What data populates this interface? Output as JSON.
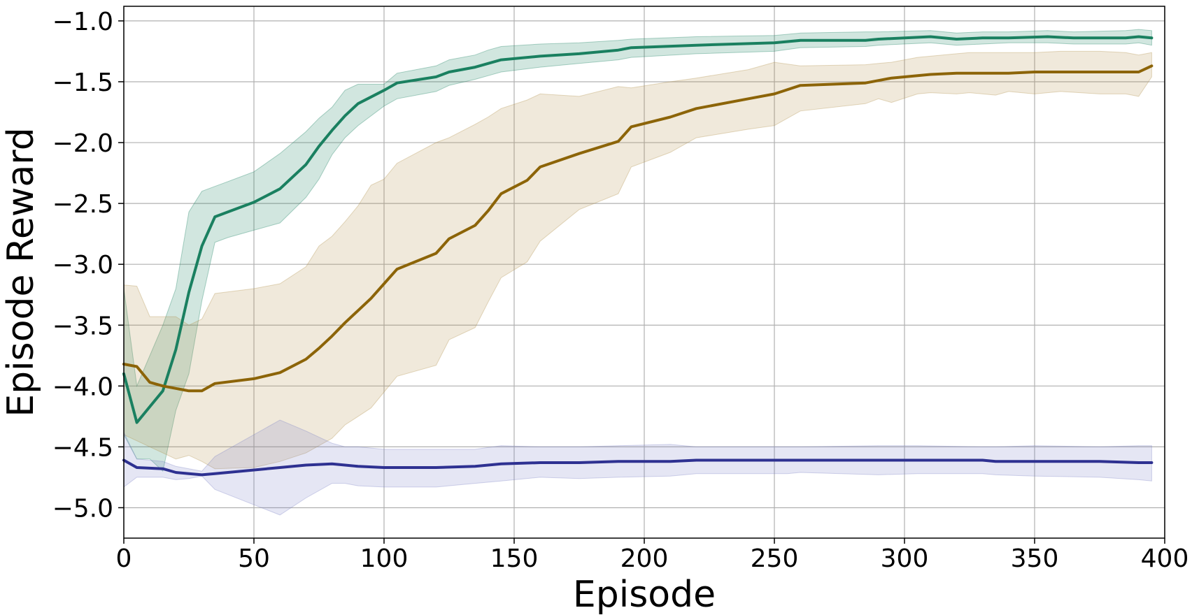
{
  "chart_data": {
    "type": "line",
    "title": "",
    "xlabel": "Episode",
    "ylabel": "Episode Reward",
    "xlim": [
      0,
      400
    ],
    "ylim": [
      -5.25,
      -0.88
    ],
    "grid": true,
    "legend": "none",
    "xticks": [
      0,
      50,
      100,
      150,
      200,
      250,
      300,
      350,
      400
    ],
    "xtick_labels": [
      "0",
      "50",
      "100",
      "150",
      "200",
      "250",
      "300",
      "350",
      "400"
    ],
    "yticks": [
      -1.0,
      -1.5,
      -2.0,
      -2.5,
      -3.0,
      -3.5,
      -4.0,
      -4.5,
      -5.0
    ],
    "ytick_labels": [
      "−1.0",
      "−1.5",
      "−2.0",
      "−2.5",
      "−3.0",
      "−3.5",
      "−4.0",
      "−4.5",
      "−5.0"
    ],
    "series": [
      {
        "color": "#1a8060",
        "band_color": "#1a8060",
        "points": [
          [
            0,
            -3.9,
            -4.4,
            -3.2
          ],
          [
            5,
            -4.3,
            -4.6,
            -4.0
          ],
          [
            10,
            -4.17,
            -4.6,
            -3.75
          ],
          [
            15,
            -4.04,
            -4.7,
            -3.5
          ],
          [
            20,
            -3.7,
            -4.2,
            -3.2
          ],
          [
            25,
            -3.23,
            -3.9,
            -2.57
          ],
          [
            30,
            -2.85,
            -3.3,
            -2.4
          ],
          [
            35,
            -2.61,
            -2.82,
            -2.36
          ],
          [
            40,
            -2.57,
            -2.78,
            -2.32
          ],
          [
            50,
            -2.49,
            -2.72,
            -2.24
          ],
          [
            60,
            -2.38,
            -2.66,
            -2.09
          ],
          [
            70,
            -2.18,
            -2.45,
            -1.91
          ],
          [
            75,
            -2.03,
            -2.3,
            -1.8
          ],
          [
            80,
            -1.9,
            -2.1,
            -1.71
          ],
          [
            85,
            -1.78,
            -1.96,
            -1.57
          ],
          [
            90,
            -1.68,
            -1.86,
            -1.52
          ],
          [
            100,
            -1.57,
            -1.7,
            -1.52
          ],
          [
            105,
            -1.51,
            -1.64,
            -1.43
          ],
          [
            120,
            -1.46,
            -1.58,
            -1.37
          ],
          [
            125,
            -1.42,
            -1.53,
            -1.32
          ],
          [
            135,
            -1.38,
            -1.48,
            -1.28
          ],
          [
            140,
            -1.35,
            -1.45,
            -1.24
          ],
          [
            145,
            -1.32,
            -1.42,
            -1.21
          ],
          [
            160,
            -1.29,
            -1.38,
            -1.19
          ],
          [
            175,
            -1.27,
            -1.35,
            -1.18
          ],
          [
            190,
            -1.24,
            -1.32,
            -1.16
          ],
          [
            195,
            -1.22,
            -1.3,
            -1.15
          ],
          [
            220,
            -1.2,
            -1.27,
            -1.13
          ],
          [
            250,
            -1.18,
            -1.25,
            -1.12
          ],
          [
            260,
            -1.16,
            -1.22,
            -1.1
          ],
          [
            285,
            -1.16,
            -1.21,
            -1.09
          ],
          [
            290,
            -1.15,
            -1.2,
            -1.09
          ],
          [
            310,
            -1.13,
            -1.18,
            -1.08
          ],
          [
            320,
            -1.15,
            -1.2,
            -1.1
          ],
          [
            330,
            -1.14,
            -1.19,
            -1.09
          ],
          [
            340,
            -1.14,
            -1.18,
            -1.09
          ],
          [
            355,
            -1.13,
            -1.18,
            -1.08
          ],
          [
            365,
            -1.14,
            -1.19,
            -1.09
          ],
          [
            385,
            -1.14,
            -1.19,
            -1.08
          ],
          [
            390,
            -1.13,
            -1.18,
            -1.07
          ],
          [
            395,
            -1.14,
            -1.2,
            -1.08
          ]
        ]
      },
      {
        "color": "#8c6408",
        "band_color": "#b3914d",
        "points": [
          [
            0,
            -3.82,
            -4.4,
            -3.17
          ],
          [
            5,
            -3.84,
            -4.45,
            -3.18
          ],
          [
            10,
            -3.97,
            -4.5,
            -3.43
          ],
          [
            15,
            -4.0,
            -4.55,
            -3.43
          ],
          [
            20,
            -4.02,
            -4.6,
            -3.43
          ],
          [
            25,
            -4.04,
            -4.57,
            -3.5
          ],
          [
            30,
            -4.04,
            -4.62,
            -3.45
          ],
          [
            35,
            -3.98,
            -4.68,
            -3.24
          ],
          [
            50,
            -3.94,
            -4.67,
            -3.2
          ],
          [
            60,
            -3.89,
            -4.62,
            -3.16
          ],
          [
            70,
            -3.78,
            -4.55,
            -3.02
          ],
          [
            75,
            -3.69,
            -4.49,
            -2.85
          ],
          [
            80,
            -3.59,
            -4.43,
            -2.77
          ],
          [
            85,
            -3.48,
            -4.32,
            -2.65
          ],
          [
            90,
            -3.38,
            -4.25,
            -2.52
          ],
          [
            95,
            -3.28,
            -4.18,
            -2.35
          ],
          [
            100,
            -3.16,
            -4.05,
            -2.3
          ],
          [
            105,
            -3.04,
            -3.92,
            -2.17
          ],
          [
            120,
            -2.91,
            -3.83,
            -2.0
          ],
          [
            125,
            -2.79,
            -3.62,
            -1.96
          ],
          [
            135,
            -2.68,
            -3.52,
            -1.85
          ],
          [
            140,
            -2.56,
            -3.31,
            -1.79
          ],
          [
            145,
            -2.42,
            -3.11,
            -1.72
          ],
          [
            155,
            -2.31,
            -2.98,
            -1.65
          ],
          [
            160,
            -2.2,
            -2.81,
            -1.6
          ],
          [
            175,
            -2.09,
            -2.55,
            -1.62
          ],
          [
            190,
            -1.99,
            -2.42,
            -1.54
          ],
          [
            195,
            -1.87,
            -2.2,
            -1.55
          ],
          [
            210,
            -1.79,
            -2.08,
            -1.5
          ],
          [
            220,
            -1.72,
            -1.96,
            -1.47
          ],
          [
            240,
            -1.64,
            -1.89,
            -1.4
          ],
          [
            250,
            -1.6,
            -1.86,
            -1.34
          ],
          [
            260,
            -1.53,
            -1.74,
            -1.37
          ],
          [
            285,
            -1.51,
            -1.68,
            -1.36
          ],
          [
            290,
            -1.49,
            -1.64,
            -1.35
          ],
          [
            295,
            -1.47,
            -1.67,
            -1.34
          ],
          [
            305,
            -1.45,
            -1.6,
            -1.3
          ],
          [
            310,
            -1.44,
            -1.59,
            -1.29
          ],
          [
            320,
            -1.43,
            -1.6,
            -1.27
          ],
          [
            325,
            -1.43,
            -1.59,
            -1.26
          ],
          [
            335,
            -1.43,
            -1.61,
            -1.26
          ],
          [
            340,
            -1.43,
            -1.58,
            -1.26
          ],
          [
            350,
            -1.42,
            -1.6,
            -1.26
          ],
          [
            360,
            -1.42,
            -1.58,
            -1.25
          ],
          [
            375,
            -1.42,
            -1.6,
            -1.25
          ],
          [
            385,
            -1.42,
            -1.6,
            -1.26
          ],
          [
            390,
            -1.42,
            -1.62,
            -1.28
          ],
          [
            395,
            -1.37,
            -1.46,
            -1.26
          ]
        ]
      },
      {
        "color": "#2e3191",
        "band_color": "#7f84c6",
        "points": [
          [
            0,
            -4.61,
            -4.83,
            -4.38
          ],
          [
            5,
            -4.67,
            -4.75,
            -4.6
          ],
          [
            15,
            -4.68,
            -4.75,
            -4.62
          ],
          [
            20,
            -4.71,
            -4.77,
            -4.66
          ],
          [
            25,
            -4.72,
            -4.76,
            -4.68
          ],
          [
            30,
            -4.73,
            -4.74,
            -4.7
          ],
          [
            35,
            -4.72,
            -4.85,
            -4.58
          ],
          [
            60,
            -4.67,
            -5.06,
            -4.28
          ],
          [
            70,
            -4.65,
            -4.92,
            -4.37
          ],
          [
            80,
            -4.64,
            -4.8,
            -4.47
          ],
          [
            85,
            -4.65,
            -4.8,
            -4.5
          ],
          [
            90,
            -4.66,
            -4.82,
            -4.5
          ],
          [
            100,
            -4.67,
            -4.83,
            -4.52
          ],
          [
            120,
            -4.67,
            -4.83,
            -4.52
          ],
          [
            135,
            -4.66,
            -4.8,
            -4.52
          ],
          [
            145,
            -4.64,
            -4.78,
            -4.49
          ],
          [
            160,
            -4.63,
            -4.75,
            -4.5
          ],
          [
            175,
            -4.63,
            -4.76,
            -4.5
          ],
          [
            190,
            -4.62,
            -4.75,
            -4.49
          ],
          [
            210,
            -4.62,
            -4.74,
            -4.48
          ],
          [
            220,
            -4.61,
            -4.72,
            -4.5
          ],
          [
            255,
            -4.61,
            -4.72,
            -4.5
          ],
          [
            260,
            -4.61,
            -4.71,
            -4.5
          ],
          [
            290,
            -4.61,
            -4.73,
            -4.49
          ],
          [
            305,
            -4.61,
            -4.72,
            -4.49
          ],
          [
            330,
            -4.61,
            -4.72,
            -4.5
          ],
          [
            335,
            -4.62,
            -4.73,
            -4.5
          ],
          [
            350,
            -4.62,
            -4.74,
            -4.49
          ],
          [
            375,
            -4.62,
            -4.75,
            -4.5
          ],
          [
            390,
            -4.63,
            -4.77,
            -4.49
          ],
          [
            395,
            -4.63,
            -4.78,
            -4.49
          ]
        ]
      }
    ]
  }
}
